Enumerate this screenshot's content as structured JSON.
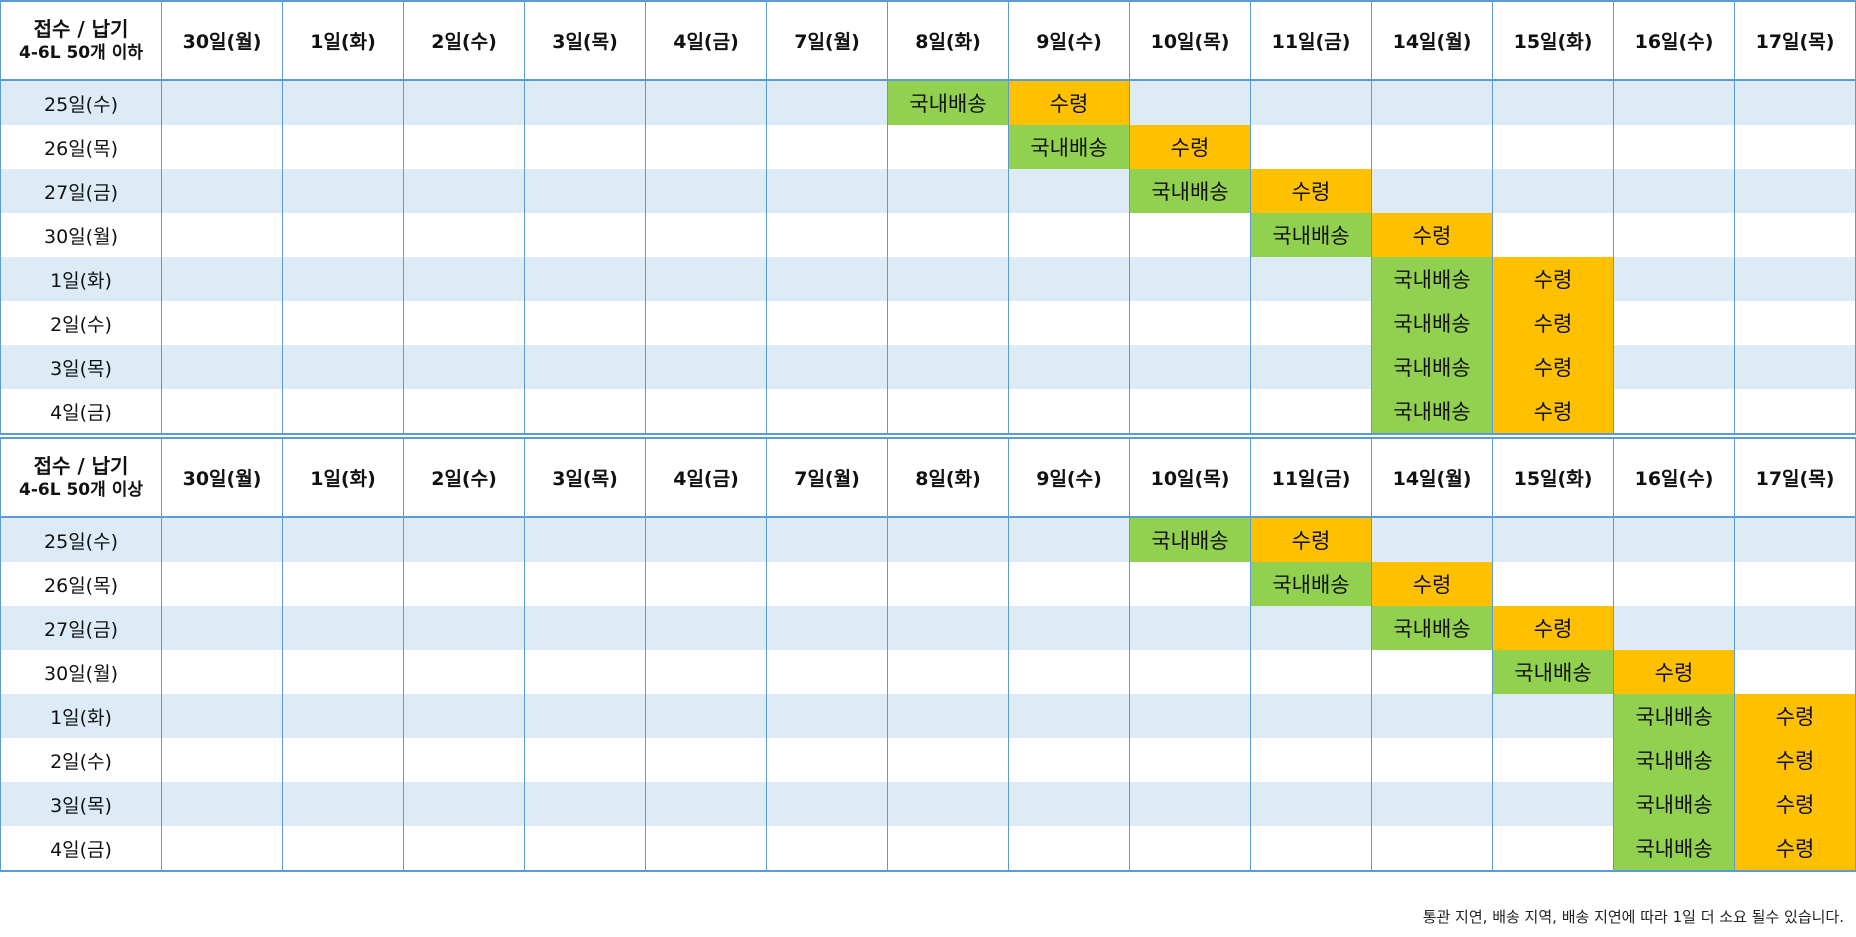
{
  "dates": [
    "30일(월)",
    "1일(화)",
    "2일(수)",
    "3일(목)",
    "4일(금)",
    "7일(월)",
    "8일(화)",
    "9일(수)",
    "10일(목)",
    "11일(금)",
    "14일(월)",
    "15일(화)",
    "16일(수)",
    "17일(목)"
  ],
  "labels": {
    "ship": "국내배송",
    "receive": "수령"
  },
  "colors": {
    "ship": "#92d050",
    "receive": "#ffc000",
    "stripe": "#ddebf7",
    "grid": "#5b9bd5"
  },
  "tables": [
    {
      "title": "접수 / 납기",
      "subtitle": "4-6L 50개 이하",
      "rows": [
        {
          "label": "25일(수)",
          "ship": 6,
          "receive": 7
        },
        {
          "label": "26일(목)",
          "ship": 7,
          "receive": 8
        },
        {
          "label": "27일(금)",
          "ship": 8,
          "receive": 9
        },
        {
          "label": "30일(월)",
          "ship": 9,
          "receive": 10
        },
        {
          "label": "1일(화)",
          "ship": 10,
          "receive": 11
        },
        {
          "label": "2일(수)",
          "ship": 10,
          "receive": 11
        },
        {
          "label": "3일(목)",
          "ship": 10,
          "receive": 11
        },
        {
          "label": "4일(금)",
          "ship": 10,
          "receive": 11
        }
      ]
    },
    {
      "title": "접수 / 납기",
      "subtitle": "4-6L 50개 이상",
      "rows": [
        {
          "label": "25일(수)",
          "ship": 8,
          "receive": 9
        },
        {
          "label": "26일(목)",
          "ship": 9,
          "receive": 10
        },
        {
          "label": "27일(금)",
          "ship": 10,
          "receive": 11
        },
        {
          "label": "30일(월)",
          "ship": 11,
          "receive": 12
        },
        {
          "label": "1일(화)",
          "ship": 12,
          "receive": 13
        },
        {
          "label": "2일(수)",
          "ship": 12,
          "receive": 13
        },
        {
          "label": "3일(목)",
          "ship": 12,
          "receive": 13
        },
        {
          "label": "4일(금)",
          "ship": 12,
          "receive": 13
        }
      ]
    }
  ],
  "footnote": "통관 지연, 배송 지역, 배송 지연에 따라 1일 더 소요 될수 있습니다."
}
